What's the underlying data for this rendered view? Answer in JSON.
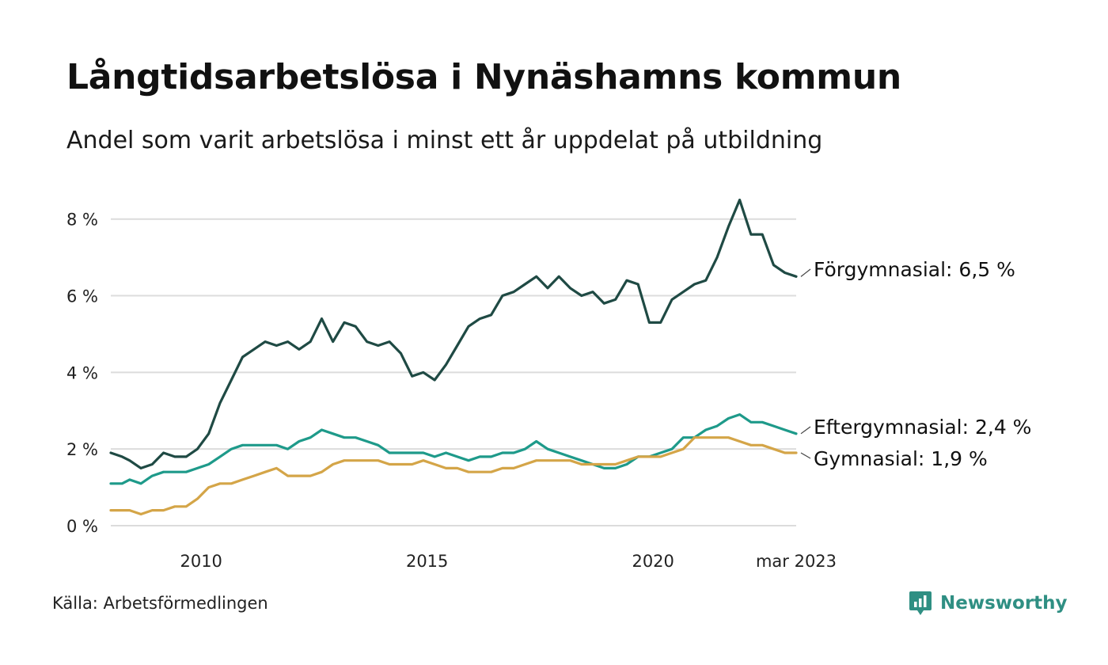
{
  "header": {
    "title": "Långtidsarbetslösa i Nynäshamns kommun",
    "subtitle": "Andel som varit arbetslösa i minst ett år uppdelat på utbildning"
  },
  "footer": {
    "source": "Källa: Arbetsförmedlingen",
    "brand": "Newsworthy",
    "brand_icon": "bar-chart-icon",
    "brand_color": "#2f8f83"
  },
  "chart_data": {
    "type": "line",
    "title": "Långtidsarbetslösa i Nynäshamns kommun",
    "subtitle": "Andel som varit arbetslösa i minst ett år uppdelat på utbildning",
    "ylim": [
      0,
      8.8
    ],
    "y_ticks": [
      0,
      2,
      4,
      6,
      8
    ],
    "y_tick_labels": [
      "0 %",
      "2 %",
      "4 %",
      "6 %",
      "8 %"
    ],
    "x_ticks": [
      "2010-01",
      "2015-01",
      "2020-01",
      "2023-03"
    ],
    "x_tick_labels": [
      "2010",
      "2015",
      "2020",
      "mar 2023"
    ],
    "x_range": [
      "2008-01",
      "2023-03"
    ],
    "grid": "horizontal",
    "legend": "direct labels at line ends",
    "series": [
      {
        "name": "Förgymnasial",
        "end_label": "Förgymnasial: 6,5 %",
        "color": "#1f4a44",
        "points": [
          [
            "2008-01",
            1.9
          ],
          [
            "2008-04",
            1.8
          ],
          [
            "2008-06",
            1.7
          ],
          [
            "2008-09",
            1.5
          ],
          [
            "2008-12",
            1.6
          ],
          [
            "2009-03",
            1.9
          ],
          [
            "2009-06",
            1.8
          ],
          [
            "2009-09",
            1.8
          ],
          [
            "2009-12",
            2.0
          ],
          [
            "2010-03",
            2.4
          ],
          [
            "2010-06",
            3.2
          ],
          [
            "2010-09",
            3.8
          ],
          [
            "2010-12",
            4.4
          ],
          [
            "2011-03",
            4.6
          ],
          [
            "2011-06",
            4.8
          ],
          [
            "2011-09",
            4.7
          ],
          [
            "2011-12",
            4.8
          ],
          [
            "2012-03",
            4.6
          ],
          [
            "2012-06",
            4.8
          ],
          [
            "2012-09",
            5.4
          ],
          [
            "2012-12",
            4.8
          ],
          [
            "2013-03",
            5.3
          ],
          [
            "2013-06",
            5.2
          ],
          [
            "2013-09",
            4.8
          ],
          [
            "2013-12",
            4.7
          ],
          [
            "2014-03",
            4.8
          ],
          [
            "2014-06",
            4.5
          ],
          [
            "2014-09",
            3.9
          ],
          [
            "2014-12",
            4.0
          ],
          [
            "2015-03",
            3.8
          ],
          [
            "2015-06",
            4.2
          ],
          [
            "2015-09",
            4.7
          ],
          [
            "2015-12",
            5.2
          ],
          [
            "2016-03",
            5.4
          ],
          [
            "2016-06",
            5.5
          ],
          [
            "2016-09",
            6.0
          ],
          [
            "2016-12",
            6.1
          ],
          [
            "2017-03",
            6.3
          ],
          [
            "2017-06",
            6.5
          ],
          [
            "2017-09",
            6.2
          ],
          [
            "2017-12",
            6.5
          ],
          [
            "2018-03",
            6.2
          ],
          [
            "2018-06",
            6.0
          ],
          [
            "2018-09",
            6.1
          ],
          [
            "2018-12",
            5.8
          ],
          [
            "2019-03",
            5.9
          ],
          [
            "2019-06",
            6.4
          ],
          [
            "2019-09",
            6.3
          ],
          [
            "2019-12",
            5.3
          ],
          [
            "2020-03",
            5.3
          ],
          [
            "2020-06",
            5.9
          ],
          [
            "2020-09",
            6.1
          ],
          [
            "2020-12",
            6.3
          ],
          [
            "2021-03",
            6.4
          ],
          [
            "2021-06",
            7.0
          ],
          [
            "2021-09",
            7.8
          ],
          [
            "2021-12",
            8.5
          ],
          [
            "2022-03",
            7.6
          ],
          [
            "2022-06",
            7.6
          ],
          [
            "2022-09",
            6.8
          ],
          [
            "2022-12",
            6.6
          ],
          [
            "2023-03",
            6.5
          ]
        ]
      },
      {
        "name": "Eftergymnasial",
        "end_label": "Eftergymnasial: 2,4 %",
        "color": "#1e9a8a",
        "points": [
          [
            "2008-01",
            1.1
          ],
          [
            "2008-04",
            1.1
          ],
          [
            "2008-06",
            1.2
          ],
          [
            "2008-09",
            1.1
          ],
          [
            "2008-12",
            1.3
          ],
          [
            "2009-03",
            1.4
          ],
          [
            "2009-06",
            1.4
          ],
          [
            "2009-09",
            1.4
          ],
          [
            "2009-12",
            1.5
          ],
          [
            "2010-03",
            1.6
          ],
          [
            "2010-06",
            1.8
          ],
          [
            "2010-09",
            2.0
          ],
          [
            "2010-12",
            2.1
          ],
          [
            "2011-03",
            2.1
          ],
          [
            "2011-06",
            2.1
          ],
          [
            "2011-09",
            2.1
          ],
          [
            "2011-12",
            2.0
          ],
          [
            "2012-03",
            2.2
          ],
          [
            "2012-06",
            2.3
          ],
          [
            "2012-09",
            2.5
          ],
          [
            "2012-12",
            2.4
          ],
          [
            "2013-03",
            2.3
          ],
          [
            "2013-06",
            2.3
          ],
          [
            "2013-09",
            2.2
          ],
          [
            "2013-12",
            2.1
          ],
          [
            "2014-03",
            1.9
          ],
          [
            "2014-06",
            1.9
          ],
          [
            "2014-09",
            1.9
          ],
          [
            "2014-12",
            1.9
          ],
          [
            "2015-03",
            1.8
          ],
          [
            "2015-06",
            1.9
          ],
          [
            "2015-09",
            1.8
          ],
          [
            "2015-12",
            1.7
          ],
          [
            "2016-03",
            1.8
          ],
          [
            "2016-06",
            1.8
          ],
          [
            "2016-09",
            1.9
          ],
          [
            "2016-12",
            1.9
          ],
          [
            "2017-03",
            2.0
          ],
          [
            "2017-06",
            2.2
          ],
          [
            "2017-09",
            2.0
          ],
          [
            "2017-12",
            1.9
          ],
          [
            "2018-03",
            1.8
          ],
          [
            "2018-06",
            1.7
          ],
          [
            "2018-09",
            1.6
          ],
          [
            "2018-12",
            1.5
          ],
          [
            "2019-03",
            1.5
          ],
          [
            "2019-06",
            1.6
          ],
          [
            "2019-09",
            1.8
          ],
          [
            "2019-12",
            1.8
          ],
          [
            "2020-03",
            1.9
          ],
          [
            "2020-06",
            2.0
          ],
          [
            "2020-09",
            2.3
          ],
          [
            "2020-12",
            2.3
          ],
          [
            "2021-03",
            2.5
          ],
          [
            "2021-06",
            2.6
          ],
          [
            "2021-09",
            2.8
          ],
          [
            "2021-12",
            2.9
          ],
          [
            "2022-03",
            2.7
          ],
          [
            "2022-06",
            2.7
          ],
          [
            "2022-09",
            2.6
          ],
          [
            "2022-12",
            2.5
          ],
          [
            "2023-03",
            2.4
          ]
        ]
      },
      {
        "name": "Gymnasial",
        "end_label": "Gymnasial: 1,9 %",
        "color": "#d4a548",
        "points": [
          [
            "2008-01",
            0.4
          ],
          [
            "2008-04",
            0.4
          ],
          [
            "2008-06",
            0.4
          ],
          [
            "2008-09",
            0.3
          ],
          [
            "2008-12",
            0.4
          ],
          [
            "2009-03",
            0.4
          ],
          [
            "2009-06",
            0.5
          ],
          [
            "2009-09",
            0.5
          ],
          [
            "2009-12",
            0.7
          ],
          [
            "2010-03",
            1.0
          ],
          [
            "2010-06",
            1.1
          ],
          [
            "2010-09",
            1.1
          ],
          [
            "2010-12",
            1.2
          ],
          [
            "2011-03",
            1.3
          ],
          [
            "2011-06",
            1.4
          ],
          [
            "2011-09",
            1.5
          ],
          [
            "2011-12",
            1.3
          ],
          [
            "2012-03",
            1.3
          ],
          [
            "2012-06",
            1.3
          ],
          [
            "2012-09",
            1.4
          ],
          [
            "2012-12",
            1.6
          ],
          [
            "2013-03",
            1.7
          ],
          [
            "2013-06",
            1.7
          ],
          [
            "2013-09",
            1.7
          ],
          [
            "2013-12",
            1.7
          ],
          [
            "2014-03",
            1.6
          ],
          [
            "2014-06",
            1.6
          ],
          [
            "2014-09",
            1.6
          ],
          [
            "2014-12",
            1.7
          ],
          [
            "2015-03",
            1.6
          ],
          [
            "2015-06",
            1.5
          ],
          [
            "2015-09",
            1.5
          ],
          [
            "2015-12",
            1.4
          ],
          [
            "2016-03",
            1.4
          ],
          [
            "2016-06",
            1.4
          ],
          [
            "2016-09",
            1.5
          ],
          [
            "2016-12",
            1.5
          ],
          [
            "2017-03",
            1.6
          ],
          [
            "2017-06",
            1.7
          ],
          [
            "2017-09",
            1.7
          ],
          [
            "2017-12",
            1.7
          ],
          [
            "2018-03",
            1.7
          ],
          [
            "2018-06",
            1.6
          ],
          [
            "2018-09",
            1.6
          ],
          [
            "2018-12",
            1.6
          ],
          [
            "2019-03",
            1.6
          ],
          [
            "2019-06",
            1.7
          ],
          [
            "2019-09",
            1.8
          ],
          [
            "2019-12",
            1.8
          ],
          [
            "2020-03",
            1.8
          ],
          [
            "2020-06",
            1.9
          ],
          [
            "2020-09",
            2.0
          ],
          [
            "2020-12",
            2.3
          ],
          [
            "2021-03",
            2.3
          ],
          [
            "2021-06",
            2.3
          ],
          [
            "2021-09",
            2.3
          ],
          [
            "2021-12",
            2.2
          ],
          [
            "2022-03",
            2.1
          ],
          [
            "2022-06",
            2.1
          ],
          [
            "2022-09",
            2.0
          ],
          [
            "2022-12",
            1.9
          ],
          [
            "2023-03",
            1.9
          ]
        ]
      }
    ]
  }
}
